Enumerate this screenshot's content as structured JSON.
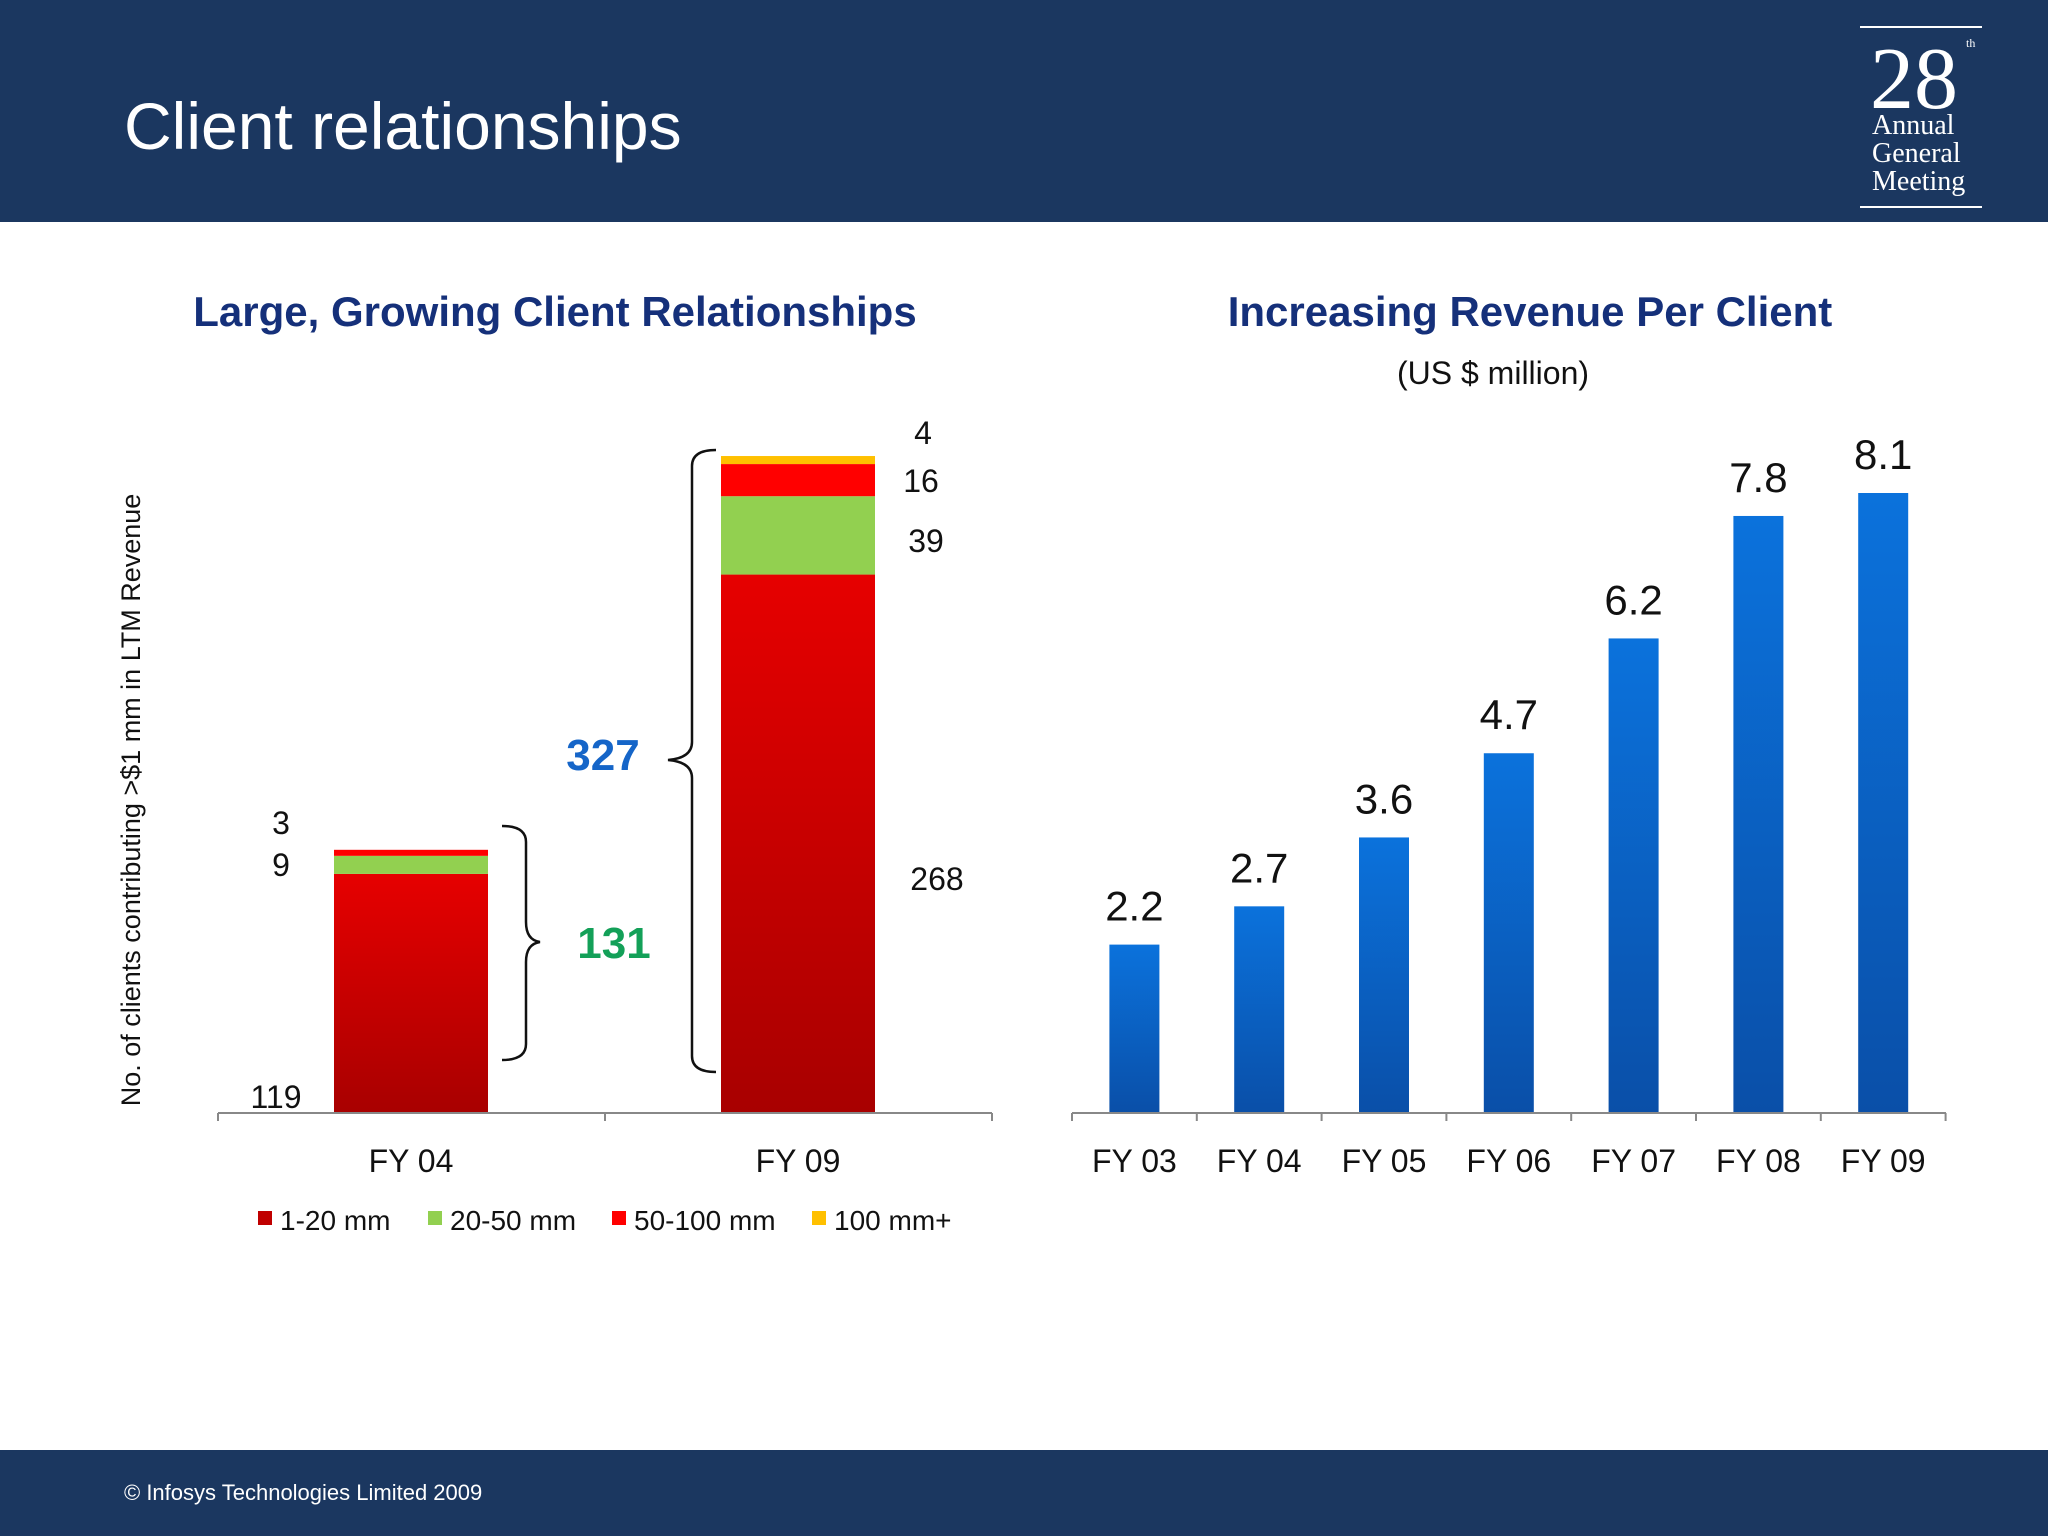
{
  "header": {
    "title": "Client relationships",
    "badge": {
      "number": "28",
      "sup": "th",
      "line1": "Annual",
      "line2": "General",
      "line3": "Meeting"
    }
  },
  "footer": {
    "copyright": "© Infosys Technologies Limited 2009"
  },
  "colors": {
    "header_bg": "#1b3760",
    "seg_1_20": "#c00000",
    "seg_20_50": "#92d050",
    "seg_50_100": "#ff0000",
    "seg_100_plus": "#ffc000",
    "revenue_bar": "#0a5fc4",
    "total_blue": "#1565c8",
    "total_green": "#13a058"
  },
  "chart_data": [
    {
      "type": "bar",
      "stacked": true,
      "title": "Large, Growing Client Relationships",
      "ylabel": "No. of clients contributing >$1 mm in LTM Revenue",
      "xlabel": "",
      "categories": [
        "FY 04",
        "FY 09"
      ],
      "series": [
        {
          "name": "1-20 mm",
          "values": [
            119,
            268
          ],
          "color": "#c00000"
        },
        {
          "name": "20-50 mm",
          "values": [
            9,
            39
          ],
          "color": "#92d050"
        },
        {
          "name": "50-100 mm",
          "values": [
            3,
            16
          ],
          "color": "#ff0000"
        },
        {
          "name": "100 mm+",
          "values": [
            0,
            4
          ],
          "color": "#ffc000"
        }
      ],
      "data_labels": [
        {
          "category": "FY 04",
          "labels": [
            "119",
            "9",
            "3"
          ]
        },
        {
          "category": "FY 09",
          "labels": [
            "268",
            "39",
            "16",
            "4"
          ]
        }
      ],
      "totals": [
        "131",
        "327"
      ],
      "ylim": [
        0,
        330
      ],
      "grid": false,
      "legend": "bottom"
    },
    {
      "type": "bar",
      "title": "Increasing Revenue Per Client",
      "subtitle": "(US $ million)",
      "xlabel": "",
      "ylabel": "",
      "categories": [
        "FY 03",
        "FY 04",
        "FY 05",
        "FY 06",
        "FY 07",
        "FY 08",
        "FY 09"
      ],
      "values": [
        2.2,
        2.7,
        3.6,
        4.7,
        6.2,
        7.8,
        8.1
      ],
      "labels": [
        "2.2",
        "2.7",
        "3.6",
        "4.7",
        "6.2",
        "7.8",
        "8.1"
      ],
      "ylim": [
        0,
        8.6
      ],
      "grid": false,
      "legend": "none"
    }
  ]
}
